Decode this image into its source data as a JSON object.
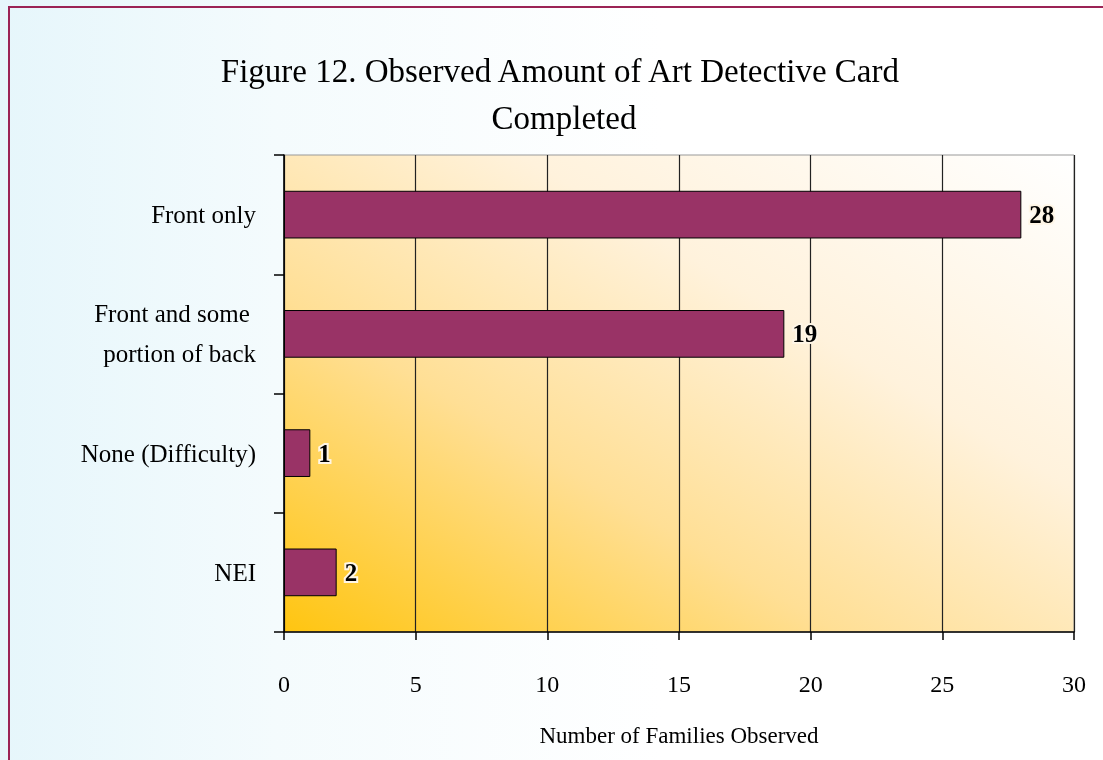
{
  "chart_data": {
    "type": "bar",
    "orientation": "horizontal",
    "title": "Figure 12. Observed Amount of Art Detective Card Completed",
    "xlabel": "Number of Families Observed",
    "categories": [
      "Front only",
      "Front and some portion of back",
      "None (Difficulty)",
      "NEI"
    ],
    "values": [
      28,
      19,
      1,
      2
    ],
    "color": "#993366",
    "xlim": [
      0,
      30
    ],
    "xticks": [
      0,
      5,
      10,
      15,
      20,
      25,
      30
    ],
    "grid": "x",
    "data_labels": true
  }
}
